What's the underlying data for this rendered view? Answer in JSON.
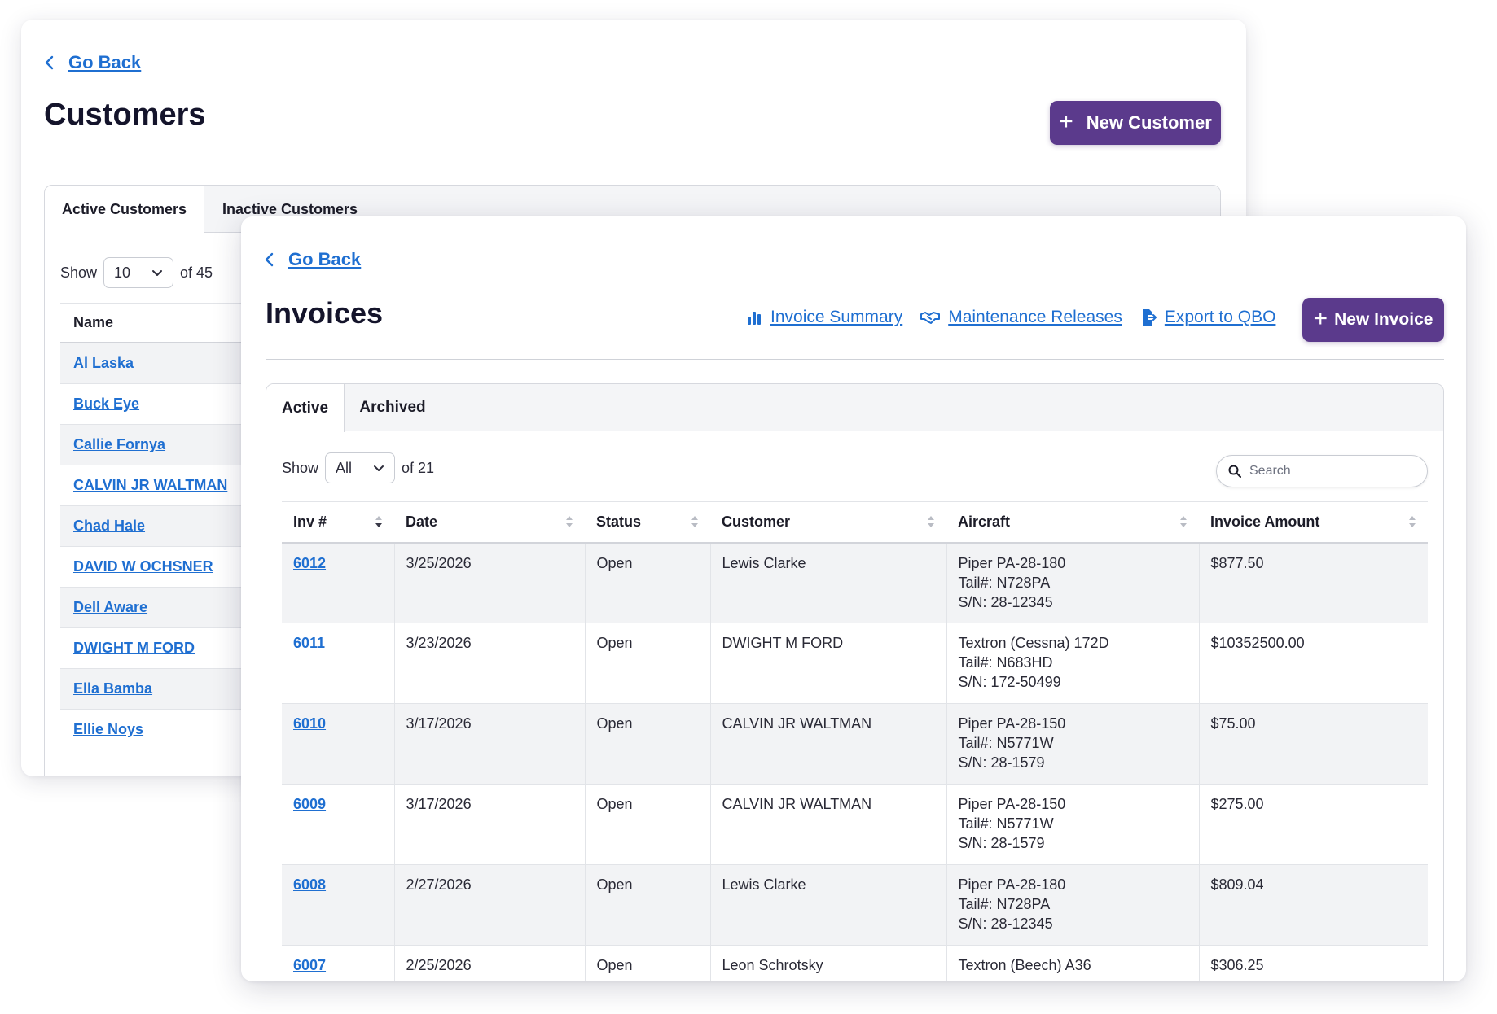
{
  "customers": {
    "go_back": "Go Back",
    "title": "Customers",
    "new_button": "New Customer",
    "tabs": [
      {
        "label": "Active Customers"
      },
      {
        "label": "Inactive Customers"
      }
    ],
    "show_label": "Show",
    "page_size": "10",
    "of_total": "of 45",
    "column_name": "Name",
    "rows": [
      "Al Laska",
      "Buck Eye",
      "Callie Fornya",
      "CALVIN JR WALTMAN",
      "Chad Hale",
      "DAVID W OCHSNER",
      "Dell Aware",
      "DWIGHT M FORD",
      "Ella Bamba",
      "Ellie Noys"
    ]
  },
  "invoices": {
    "go_back": "Go Back",
    "title": "Invoices",
    "actions": {
      "summary": "Invoice Summary",
      "maintenance": "Maintenance Releases",
      "export": "Export to QBO"
    },
    "new_button": "New Invoice",
    "tabs": [
      {
        "label": "Active"
      },
      {
        "label": "Archived"
      }
    ],
    "show_label": "Show",
    "page_size": "All",
    "of_total": "of 21",
    "search_placeholder": "Search",
    "columns": [
      "Inv #",
      "Date",
      "Status",
      "Customer",
      "Aircraft",
      "Invoice Amount"
    ],
    "rows": [
      {
        "inv": "6012",
        "date": "3/25/2026",
        "status": "Open",
        "customer": "Lewis Clarke",
        "aircraft": [
          "Piper PA-28-180",
          "Tail#: N728PA",
          "S/N: 28-12345"
        ],
        "amount": "$877.50"
      },
      {
        "inv": "6011",
        "date": "3/23/2026",
        "status": "Open",
        "customer": "DWIGHT M FORD",
        "aircraft": [
          "Textron (Cessna) 172D",
          "Tail#: N683HD",
          "S/N: 172-50499"
        ],
        "amount": "$10352500.00"
      },
      {
        "inv": "6010",
        "date": "3/17/2026",
        "status": "Open",
        "customer": "CALVIN JR WALTMAN",
        "aircraft": [
          "Piper PA-28-150",
          "Tail#: N5771W",
          "S/N: 28-1579"
        ],
        "amount": "$75.00"
      },
      {
        "inv": "6009",
        "date": "3/17/2026",
        "status": "Open",
        "customer": "CALVIN JR WALTMAN",
        "aircraft": [
          "Piper PA-28-150",
          "Tail#: N5771W",
          "S/N: 28-1579"
        ],
        "amount": "$275.00"
      },
      {
        "inv": "6008",
        "date": "2/27/2026",
        "status": "Open",
        "customer": "Lewis Clarke",
        "aircraft": [
          "Piper PA-28-180",
          "Tail#: N728PA",
          "S/N: 28-12345"
        ],
        "amount": "$809.04"
      },
      {
        "inv": "6007",
        "date": "2/25/2026",
        "status": "Open",
        "customer": "Leon Schrotsky",
        "aircraft": [
          "Textron (Beech) A36",
          "",
          ""
        ],
        "amount": "$306.25"
      }
    ]
  },
  "colors": {
    "primary": "#5b3a8c",
    "link": "#1f6fd1"
  },
  "icons": [
    "chevron-left-icon",
    "plus-icon",
    "chevron-down-icon",
    "bar-chart-icon",
    "handshake-icon",
    "export-icon",
    "search-icon",
    "sort-icon"
  ]
}
